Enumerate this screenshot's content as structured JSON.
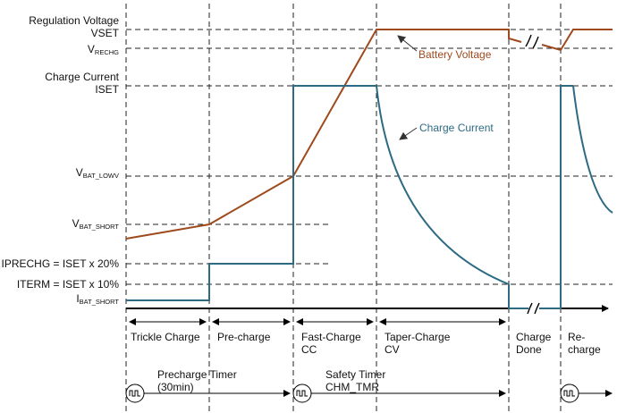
{
  "colors": {
    "voltage": "#9e4a1d",
    "current": "#2d6b84",
    "grid": "#222222"
  },
  "left_labels": {
    "regulation_voltage": "Regulation Voltage",
    "vset": "VSET",
    "vrechg_main": "V",
    "vrechg_sub": "RECHG",
    "charge_current": "Charge Current",
    "iset": "ISET",
    "vbat_lowv_main": "V",
    "vbat_lowv_sub": "BAT_LOWV",
    "vbat_short_main": "V",
    "vbat_short_sub": "BAT_SHORT",
    "iprechg": "IPRECHG = ISET x 20%",
    "iterm": "ITERM = ISET x 10%",
    "ibat_short_main": "I",
    "ibat_short_sub": "BAT_SHORT"
  },
  "annotations": {
    "battery_voltage": "Battery Voltage",
    "charge_current": "Charge Current"
  },
  "phases": [
    {
      "line1": "Trickle Charge",
      "line2": ""
    },
    {
      "line1": "Pre-charge",
      "line2": ""
    },
    {
      "line1": "Fast-Charge",
      "line2": "CC"
    },
    {
      "line1": "Taper-Charge",
      "line2": "CV"
    },
    {
      "line1": "Charge",
      "line2": "Done"
    },
    {
      "line1": "Re-",
      "line2": "charge"
    }
  ],
  "timers": {
    "precharge_line1": "Precharge Timer",
    "precharge_line2": "(30min)",
    "safety_line1": "Safety Timer",
    "safety_line2": "CHM_TMR"
  }
}
